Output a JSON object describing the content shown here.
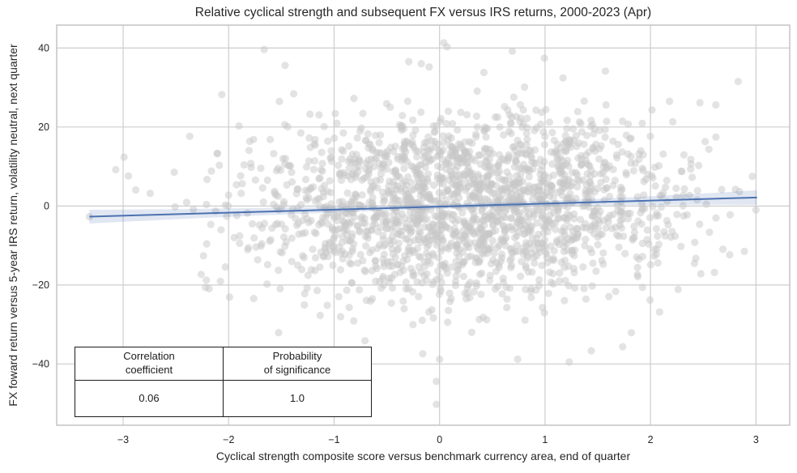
{
  "chart_data": {
    "type": "scatter",
    "title": "Relative cyclical strength and subsequent FX versus IRS returns, 2000-2023 (Apr)",
    "xlabel": "Cyclical strength composite score versus benchmark currency area, end of quarter",
    "ylabel": "FX foward return versus 5-year IRS return, volatility neutral, next quarter",
    "xlim": [
      -3.63,
      3.32
    ],
    "ylim": [
      -55.5,
      45.8
    ],
    "xticks": [
      -3,
      -2,
      -1,
      0,
      1,
      2,
      3
    ],
    "xtick_labels": [
      "−3",
      "−2",
      "−1",
      "0",
      "1",
      "2",
      "3"
    ],
    "yticks": [
      40,
      20,
      0,
      -20,
      -40
    ],
    "ytick_labels": [
      "40",
      "20",
      "0",
      "−20",
      "−40"
    ],
    "grid": true,
    "legend": false,
    "scatter": {
      "n_points": 2050,
      "seed": 20,
      "x_mean": 0.25,
      "x_std": 1.02,
      "trend_slope": 0.77,
      "trend_intercept": -0.14,
      "resid_std": 11.5,
      "x_range": [
        -3.45,
        3.2
      ],
      "y_range": [
        -52.5,
        43.5
      ]
    },
    "notable_points": [
      [
        0.04,
        41.3
      ],
      [
        0.69,
        39.2
      ],
      [
        0.42,
        33.8
      ],
      [
        2.18,
        26.5
      ],
      [
        2.62,
        25.6
      ],
      [
        3.0,
        -1.0
      ],
      [
        2.89,
        -11.5
      ],
      [
        -3.32,
        -2.7
      ],
      [
        -3.07,
        9.2
      ],
      [
        -2.95,
        7.6
      ],
      [
        -0.03,
        -44.4
      ],
      [
        -0.03,
        -50.2
      ],
      [
        1.23,
        -39.5
      ],
      [
        0.0,
        -38.8
      ]
    ],
    "regression": {
      "x0": -3.32,
      "y0": -2.7,
      "x1": 3.01,
      "y1": 2.15,
      "ci_halfwidth_left": 1.75,
      "ci_halfwidth_mid": 0.6,
      "ci_halfwidth_right": 1.85,
      "ci_narrowest_x": 0.3
    },
    "stats_table": {
      "columns": [
        {
          "header": "Correlation\ncoefficient",
          "value": "0.06"
        },
        {
          "header": "Probability\nof significance",
          "value": "1.0"
        }
      ]
    },
    "correlation_coefficient": 0.06,
    "probability_of_significance": 1.0
  },
  "colors": {
    "regression_line": "#4c72b0",
    "confidence_band": "rgba(76,114,176,0.17)",
    "scatter_point": "#c8c8c8",
    "grid": "#cdcdcd",
    "spine": "#c4c4c4",
    "text": "#262626"
  }
}
